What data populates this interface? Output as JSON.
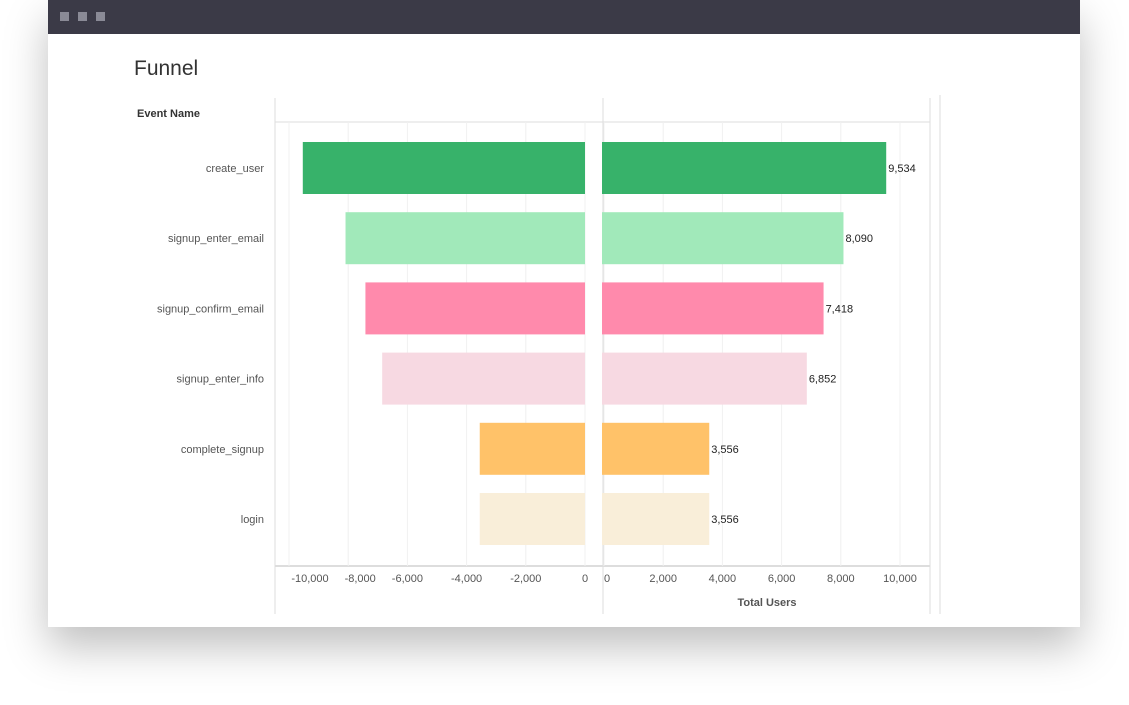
{
  "window": {
    "title": "Funnel"
  },
  "chart_data": {
    "type": "bar",
    "orientation": "horizontal-mirrored",
    "title": "Funnel",
    "ylabel": "Event Name",
    "xlabel": "Total Users",
    "categories": [
      "create_user",
      "signup_enter_email",
      "signup_confirm_email",
      "signup_enter_info",
      "complete_signup",
      "login"
    ],
    "values": [
      9534,
      8090,
      7418,
      6852,
      3556,
      3556
    ],
    "value_labels": [
      "9,534",
      "8,090",
      "7,418",
      "6,852",
      "3,556",
      "3,556"
    ],
    "colors": [
      "#37b26a",
      "#a1e9ba",
      "#ff8aac",
      "#f7d9e2",
      "#ffc269",
      "#f9eed9"
    ],
    "left_xlim": [
      -10000,
      0
    ],
    "right_xlim": [
      0,
      10000
    ],
    "left_ticks": [
      "-10,000",
      "-8,000",
      "-6,000",
      "-4,000",
      "-2,000",
      "0"
    ],
    "right_ticks": [
      "0",
      "2,000",
      "4,000",
      "6,000",
      "8,000",
      "10,000"
    ],
    "grid": true
  }
}
